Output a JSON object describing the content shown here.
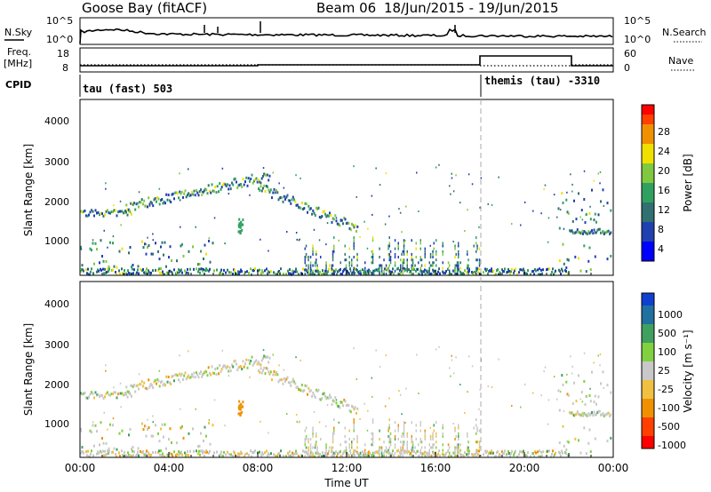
{
  "header": {
    "station": "Goose Bay (fitACF)",
    "beam": "Beam 06",
    "date_range": "18/Jun/2015 - 19/Jun/2015"
  },
  "top_panels": {
    "nsky_label": "N.Sky",
    "nsky_ticks": [
      "10^5",
      "10^0"
    ],
    "nsearch_label": "N.Search",
    "nsearch_ticks": [
      "10^5",
      "10^0"
    ],
    "freq_label_1": "Freq.",
    "freq_label_2": "[MHz]",
    "freq_ticks": [
      "18",
      "8"
    ],
    "nave_label": "Nave",
    "nave_ticks": [
      "60",
      "0"
    ],
    "cpid_label": "CPID",
    "cpid_1": "tau (fast) 503",
    "cpid_2": "themis (tau) -3310"
  },
  "chart_data": [
    {
      "type": "heatmap",
      "name": "power",
      "ylabel": "Slant Range [km]",
      "yticks": [
        "4000",
        "3000",
        "2000",
        "1000"
      ],
      "colorbar_label": "Power [dB]",
      "colorbar_ticks": [
        "28",
        "24",
        "20",
        "16",
        "12",
        "8",
        "4"
      ],
      "colors": [
        "#0000ff",
        "#2040b0",
        "#307070",
        "#30a060",
        "#80c840",
        "#f0e000",
        "#f09000",
        "#ff4000",
        "#ff0000"
      ]
    },
    {
      "type": "heatmap",
      "name": "velocity",
      "ylabel": "Slant Range [km]",
      "yticks": [
        "4000",
        "3000",
        "2000",
        "1000"
      ],
      "colorbar_label": "Velocity [m s⁻¹]",
      "colorbar_ticks": [
        "1000",
        "500",
        "100",
        "25",
        "-25",
        "-100",
        "-500",
        "-1000"
      ],
      "colors": [
        "#1040d0",
        "#2070a0",
        "#40a060",
        "#80d040",
        "#c8c8c8",
        "#f0c040",
        "#f09000",
        "#ff4000",
        "#ff0000"
      ]
    }
  ],
  "x_axis": {
    "ticks": [
      "00:00",
      "04:00",
      "08:00",
      "12:00",
      "16:00",
      "20:00",
      "00:00"
    ],
    "label": "Time UT"
  }
}
